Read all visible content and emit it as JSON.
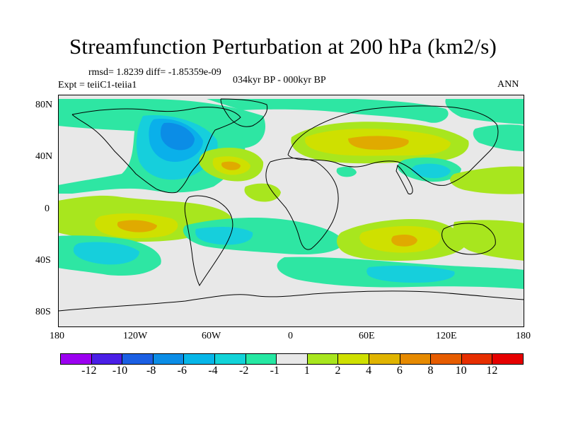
{
  "title": "Streamfunction Perturbation at 200 hPa (km2/s)",
  "stats_line": "rmsd= 1.8239 diff= -1.85359e-09",
  "experiment_line": "Expt = teiiC1-teiia1",
  "period_line": "034kyr BP - 000kyr BP",
  "season": "ANN",
  "lat_ticks": [
    "80N",
    "40N",
    "0",
    "40S",
    "80S"
  ],
  "lon_ticks": [
    "180",
    "120W",
    "60W",
    "0",
    "60E",
    "120E",
    "180"
  ],
  "colorbar": {
    "labels": [
      "-12",
      "-10",
      "-8",
      "-6",
      "-4",
      "-2",
      "-1",
      "1",
      "2",
      "4",
      "6",
      "8",
      "10",
      "12"
    ],
    "colors": [
      "#9b00f0",
      "#4a1fe6",
      "#1b5fe3",
      "#0b8de6",
      "#06b6e8",
      "#12d3d8",
      "#26e8a3",
      "#e8e8e8",
      "#a8e61e",
      "#cfe000",
      "#e0b400",
      "#e68a00",
      "#e65c00",
      "#e62e00",
      "#e60000"
    ]
  },
  "map_colors": {
    "neg1": "#2ee6a3",
    "neg2": "#16cfdc",
    "neg3": "#0ab0ea",
    "neg4": "#0b8de6",
    "pos1": "#a8e61e",
    "pos2": "#cfe000",
    "pos3": "#e0aa00",
    "background": "#e8e8e8",
    "coast": "#000000"
  }
}
